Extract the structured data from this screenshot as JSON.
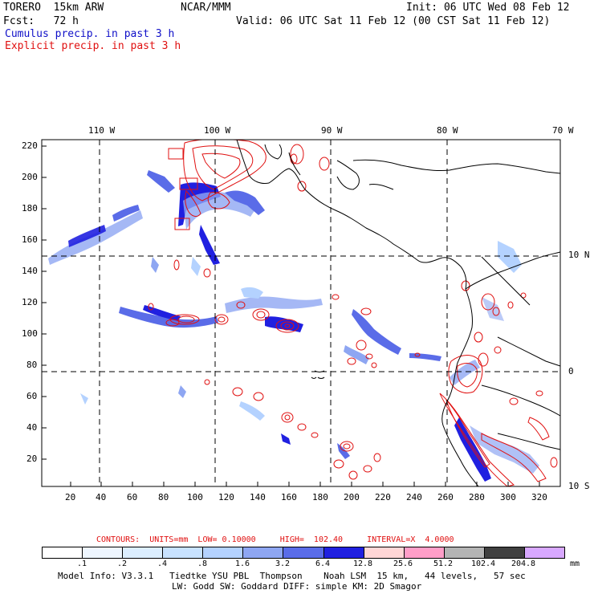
{
  "header": {
    "model": "TORERO  15km ARW",
    "org": "NCAR/MMM",
    "init": "Init: 06 UTC Wed 08 Feb 12",
    "fcst": "Fcst:   72 h",
    "valid": "Valid: 06 UTC Sat 11 Feb 12 (00 CST Sat 11 Feb 12)",
    "field1": "Cumulus precip. in past 3 h",
    "field2": "Explicit precip. in past 3 h"
  },
  "colors": {
    "field1": "#1010c8",
    "field2": "#e01010",
    "map_lines": "#000000"
  },
  "map": {
    "lon_labels": [
      "110 W",
      "100 W",
      "90 W",
      "80 W",
      "70 W"
    ],
    "lat_labels": [
      "10 N",
      "0",
      "10 S"
    ],
    "y_ticks": [
      "220",
      "200",
      "180",
      "160",
      "140",
      "120",
      "100",
      "80",
      "60",
      "40",
      "20"
    ],
    "x_ticks": [
      "20",
      "40",
      "60",
      "80",
      "100",
      "120",
      "140",
      "160",
      "180",
      "200",
      "220",
      "240",
      "260",
      "280",
      "300",
      "320"
    ]
  },
  "contour_info": {
    "text": "CONTOURS:  UNITS=mm  LOW= 0.10000     HIGH=  102.40     INTERVAL=X  4.0000"
  },
  "colorbar": {
    "colors": [
      "#ffffff",
      "#eef6ff",
      "#dceeff",
      "#c8e2ff",
      "#b4d2ff",
      "#8ea6f2",
      "#5a6ce8",
      "#2020e0",
      "#ffd6d6",
      "#ff9ec8",
      "#b4b4b4",
      "#404040",
      "#d8a8ff"
    ],
    "labels": [
      ".1",
      ".2",
      ".4",
      ".8",
      "1.6",
      "3.2",
      "6.4",
      "12.8",
      "25.6",
      "51.2",
      "102.4",
      "204.8"
    ],
    "unit": "mm"
  },
  "footer": {
    "line1": "Model Info: V3.3.1   Tiedtke YSU PBL  Thompson    Noah LSM  15 km,   44 levels,   57 sec",
    "line2": "LW: Godd SW: Goddard DIFF: simple KM: 2D Smagor"
  }
}
